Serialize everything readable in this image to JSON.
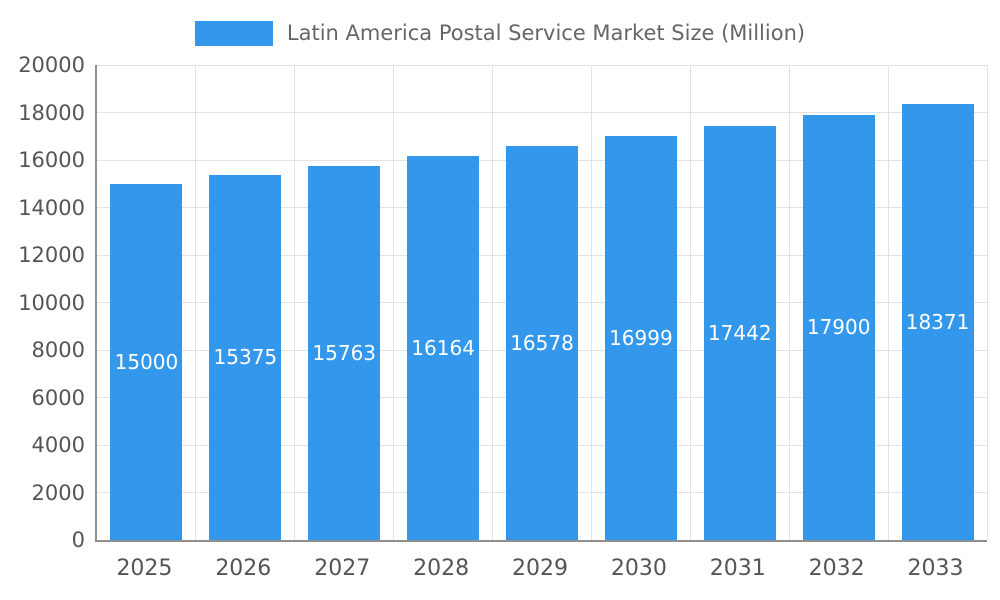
{
  "legend": {
    "swatch_color": "#3398EC"
  },
  "chart_data": {
    "type": "bar",
    "title": "Latin America Postal Service Market Size (Million)",
    "categories": [
      "2025",
      "2026",
      "2027",
      "2028",
      "2029",
      "2030",
      "2031",
      "2032",
      "2033"
    ],
    "values": [
      15000,
      15375,
      15763,
      16164,
      16578,
      16999,
      17442,
      17900,
      18371
    ],
    "xlabel": "",
    "ylabel": "",
    "ylim": [
      0,
      20000
    ],
    "ytick_step": 2000,
    "grid": true,
    "legend_position": "top",
    "bar_color": "#3398EC",
    "value_label_color": "#ffffff",
    "axis_color": "#8f8f8f",
    "grid_color": "#e3e3e3",
    "tick_label_color": "#555555"
  }
}
